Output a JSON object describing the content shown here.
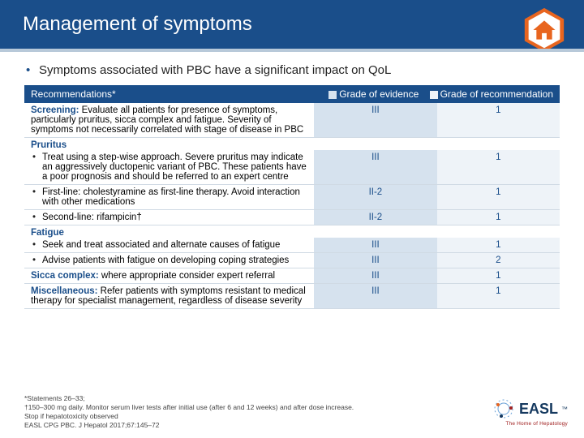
{
  "colors": {
    "header_bg": "#1a4e8a",
    "evidence_bg": "#d6e2ee",
    "recommendation_bg": "#eef3f8",
    "accent_orange": "#e8651f",
    "brand_red": "#a02020"
  },
  "header": {
    "title": "Management of symptoms"
  },
  "intro": "Symptoms associated with PBC have a significant impact on QoL",
  "table": {
    "header_label": "Recommendations*",
    "legend_evidence": "Grade of evidence",
    "legend_recommendation": "Grade of recommendation",
    "rows": [
      {
        "label": "Screening:",
        "text": " Evaluate all patients for presence of symptoms, particularly pruritus, sicca complex and fatigue. Severity of symptoms not necessarily correlated with stage of disease in PBC",
        "evidence": "III",
        "rec": "1",
        "bullet": false
      },
      {
        "label": "Pruritus",
        "text": "",
        "evidence": "",
        "rec": "",
        "bullet": false,
        "header_only": true
      },
      {
        "label": "",
        "text": "Treat using a step-wise approach. Severe pruritus may indicate an aggressively ductopenic variant of PBC. These patients have a poor prognosis and should be referred to an expert centre",
        "evidence": "III",
        "rec": "1",
        "bullet": true
      },
      {
        "label": "",
        "text": "First-line: cholestyramine as first-line therapy. Avoid interaction with other medications",
        "evidence": "II-2",
        "rec": "1",
        "bullet": true
      },
      {
        "label": "",
        "text": "Second-line: rifampicin†",
        "evidence": "II-2",
        "rec": "1",
        "bullet": true
      },
      {
        "label": "Fatigue",
        "text": "",
        "evidence": "",
        "rec": "",
        "bullet": false,
        "header_only": true
      },
      {
        "label": "",
        "text": "Seek and treat associated and alternate causes of fatigue",
        "evidence": "III",
        "rec": "1",
        "bullet": true
      },
      {
        "label": "",
        "text": "Advise patients with fatigue on developing coping strategies",
        "evidence": "III",
        "rec": "2",
        "bullet": true
      },
      {
        "label": "Sicca complex:",
        "text": " where appropriate consider expert referral",
        "evidence": "III",
        "rec": "1",
        "bullet": false
      },
      {
        "label": "Miscellaneous:",
        "text": " Refer patients with symptoms resistant to medical therapy for specialist management, regardless of disease severity",
        "evidence": "III",
        "rec": "1",
        "bullet": false
      }
    ]
  },
  "footnotes": {
    "l1": "*Statements 26–33;",
    "l2": "†150–300 mg daily. Monitor serum liver tests after initial use (after 6 and 12 weeks) and after dose increase.",
    "l3": "Stop if hepatotoxicity observed",
    "l4": "EASL CPG PBC. J Hepatol 2017;67:145–72"
  },
  "brand": {
    "name": "EASL",
    "sub": "The Home of Hepatology",
    "tm": "™"
  }
}
